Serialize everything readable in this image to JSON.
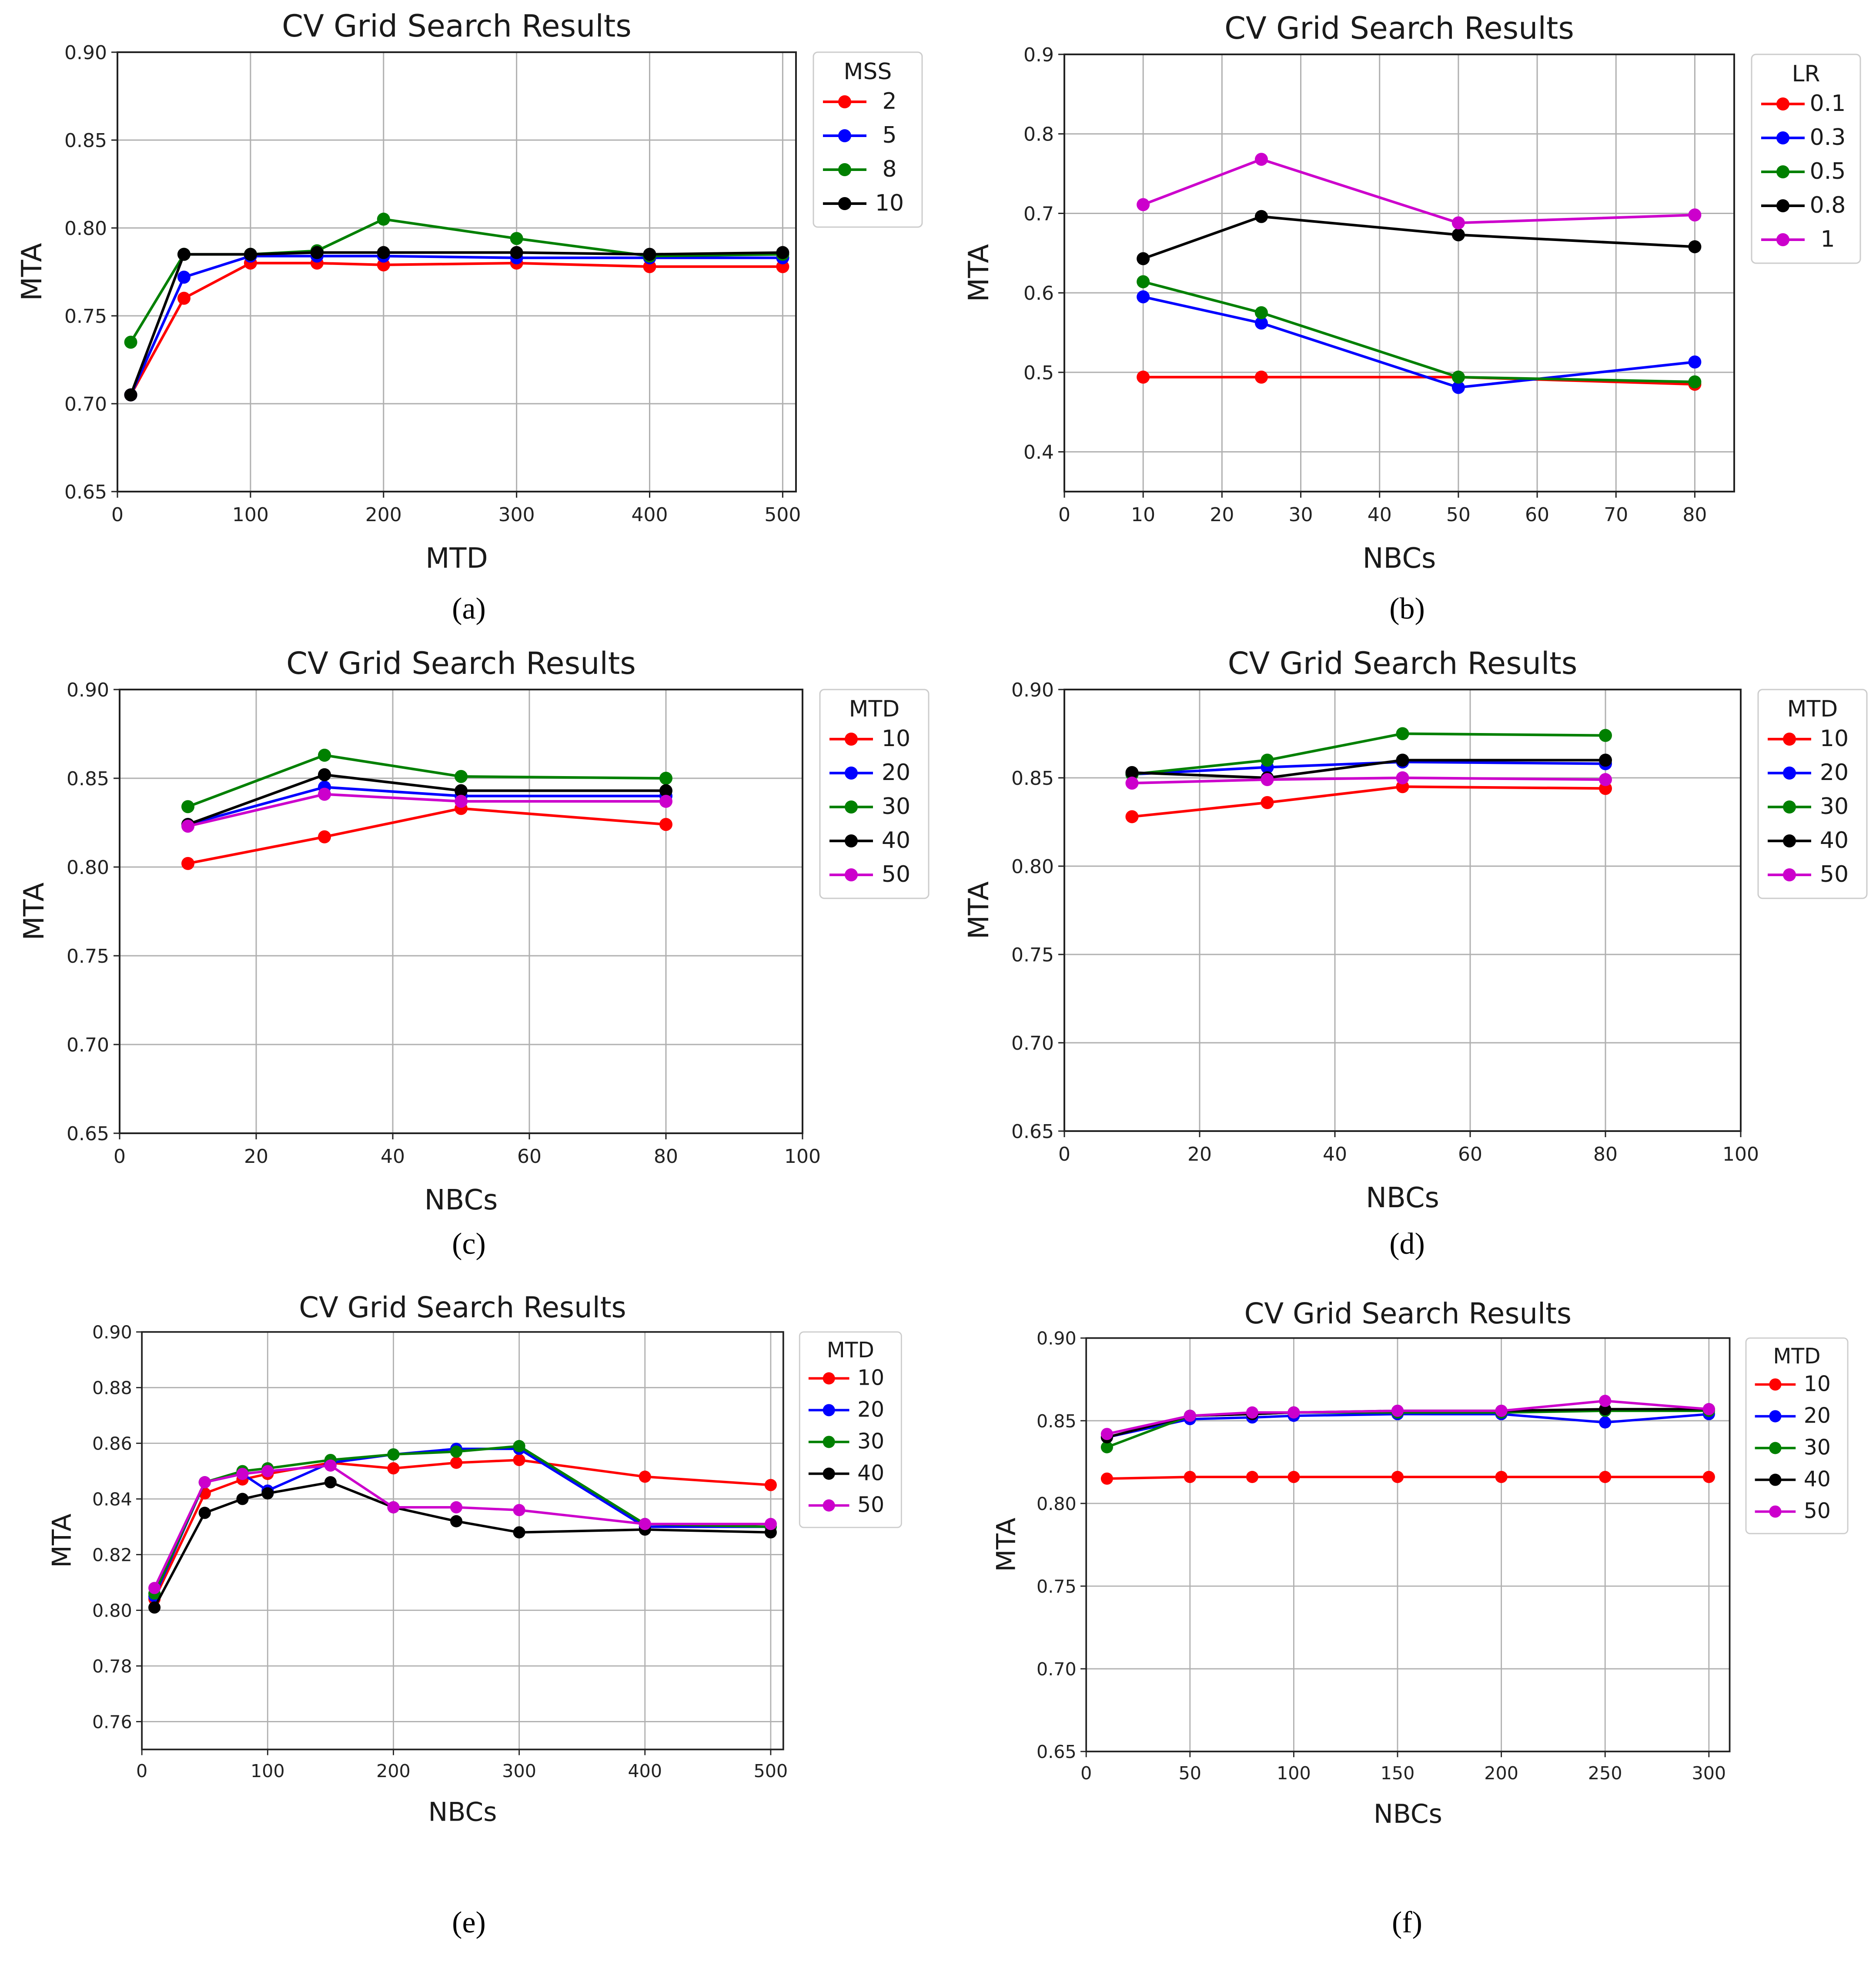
{
  "figure": {
    "captions": [
      "(a)",
      "(b)",
      "(c)",
      "(d)",
      "(e)",
      "(f)"
    ]
  },
  "chart_data": [
    {
      "type": "line",
      "panel": "a",
      "title": "CV Grid Search Results",
      "xlabel": "MTD",
      "ylabel": "MTA",
      "xlim": [
        0,
        510
      ],
      "ylim": [
        0.65,
        0.9
      ],
      "xticks": [
        0,
        100,
        200,
        300,
        400,
        500
      ],
      "yticks": [
        0.65,
        0.7,
        0.75,
        0.8,
        0.85,
        0.9
      ],
      "xtick_labels": [
        "0",
        "100",
        "200",
        "300",
        "400",
        "500"
      ],
      "ytick_labels": [
        "0.65",
        "0.70",
        "0.75",
        "0.80",
        "0.85",
        "0.90"
      ],
      "legend_title": "MSS",
      "legend_position": "outside-right-top",
      "grid": true,
      "x": [
        10,
        50,
        100,
        150,
        200,
        300,
        400,
        500
      ],
      "series": [
        {
          "name": "2",
          "color": "#ff0000",
          "values": [
            0.705,
            0.76,
            0.78,
            0.78,
            0.779,
            0.78,
            0.778,
            0.778
          ]
        },
        {
          "name": "5",
          "color": "#0000ff",
          "values": [
            0.705,
            0.772,
            0.784,
            0.784,
            0.784,
            0.783,
            0.783,
            0.783
          ]
        },
        {
          "name": "8",
          "color": "#008000",
          "values": [
            0.735,
            0.785,
            0.785,
            0.787,
            0.805,
            0.794,
            0.784,
            0.785
          ]
        },
        {
          "name": "10",
          "color": "#000000",
          "values": [
            0.705,
            0.785,
            0.785,
            0.786,
            0.786,
            0.786,
            0.785,
            0.786
          ]
        }
      ]
    },
    {
      "type": "line",
      "panel": "b",
      "title": "CV Grid Search Results",
      "xlabel": "NBCs",
      "ylabel": "MTA",
      "xlim": [
        0,
        85
      ],
      "ylim": [
        0.35,
        0.9
      ],
      "xticks": [
        0,
        10,
        20,
        30,
        40,
        50,
        60,
        70,
        80
      ],
      "yticks": [
        0.4,
        0.5,
        0.6,
        0.7,
        0.8,
        0.9
      ],
      "xtick_labels": [
        "0",
        "10",
        "20",
        "30",
        "40",
        "50",
        "60",
        "70",
        "80"
      ],
      "ytick_labels": [
        "0.4",
        "0.5",
        "0.6",
        "0.7",
        "0.8",
        "0.9"
      ],
      "legend_title": "LR",
      "legend_position": "outside-right-top",
      "grid": true,
      "x": [
        10,
        25,
        50,
        80
      ],
      "series": [
        {
          "name": "0.1",
          "color": "#ff0000",
          "values": [
            0.494,
            0.494,
            0.494,
            0.485
          ]
        },
        {
          "name": "0.3",
          "color": "#0000ff",
          "values": [
            0.595,
            0.562,
            0.481,
            0.513
          ]
        },
        {
          "name": "0.5",
          "color": "#008000",
          "values": [
            0.614,
            0.575,
            0.494,
            0.488
          ]
        },
        {
          "name": "0.8",
          "color": "#000000",
          "values": [
            0.643,
            0.696,
            0.673,
            0.658
          ]
        },
        {
          "name": "1",
          "color": "#cc00cc",
          "values": [
            0.711,
            0.768,
            0.688,
            0.698
          ]
        }
      ]
    },
    {
      "type": "line",
      "panel": "c",
      "title": "CV Grid Search Results",
      "xlabel": "NBCs",
      "ylabel": "MTA",
      "xlim": [
        0,
        100
      ],
      "ylim": [
        0.65,
        0.9
      ],
      "xticks": [
        0,
        20,
        40,
        60,
        80,
        100
      ],
      "yticks": [
        0.65,
        0.7,
        0.75,
        0.8,
        0.85,
        0.9
      ],
      "xtick_labels": [
        "0",
        "20",
        "40",
        "60",
        "80",
        "100"
      ],
      "ytick_labels": [
        "0.65",
        "0.70",
        "0.75",
        "0.80",
        "0.85",
        "0.90"
      ],
      "legend_title": "MTD",
      "legend_position": "outside-right-top",
      "grid": true,
      "x": [
        10,
        30,
        50,
        80
      ],
      "series": [
        {
          "name": "10",
          "color": "#ff0000",
          "values": [
            0.802,
            0.817,
            0.833,
            0.824
          ]
        },
        {
          "name": "20",
          "color": "#0000ff",
          "values": [
            0.824,
            0.845,
            0.84,
            0.84
          ]
        },
        {
          "name": "30",
          "color": "#008000",
          "values": [
            0.834,
            0.863,
            0.851,
            0.85
          ]
        },
        {
          "name": "40",
          "color": "#000000",
          "values": [
            0.824,
            0.852,
            0.843,
            0.843
          ]
        },
        {
          "name": "50",
          "color": "#cc00cc",
          "values": [
            0.823,
            0.841,
            0.837,
            0.837
          ]
        }
      ]
    },
    {
      "type": "line",
      "panel": "d",
      "title": "CV Grid Search Results",
      "xlabel": "NBCs",
      "ylabel": "MTA",
      "xlim": [
        0,
        100
      ],
      "ylim": [
        0.65,
        0.9
      ],
      "xticks": [
        0,
        20,
        40,
        60,
        80,
        100
      ],
      "yticks": [
        0.65,
        0.7,
        0.75,
        0.8,
        0.85,
        0.9
      ],
      "xtick_labels": [
        "0",
        "20",
        "40",
        "60",
        "80",
        "100"
      ],
      "ytick_labels": [
        "0.65",
        "0.70",
        "0.75",
        "0.80",
        "0.85",
        "0.90"
      ],
      "legend_title": "MTD",
      "legend_position": "outside-right-top",
      "grid": true,
      "x": [
        10,
        30,
        50,
        80
      ],
      "series": [
        {
          "name": "10",
          "color": "#ff0000",
          "values": [
            0.828,
            0.836,
            0.845,
            0.844
          ]
        },
        {
          "name": "20",
          "color": "#0000ff",
          "values": [
            0.852,
            0.856,
            0.859,
            0.858
          ]
        },
        {
          "name": "30",
          "color": "#008000",
          "values": [
            0.852,
            0.86,
            0.875,
            0.874
          ]
        },
        {
          "name": "40",
          "color": "#000000",
          "values": [
            0.853,
            0.85,
            0.86,
            0.86
          ]
        },
        {
          "name": "50",
          "color": "#cc00cc",
          "values": [
            0.847,
            0.849,
            0.85,
            0.849
          ]
        }
      ]
    },
    {
      "type": "line",
      "panel": "e",
      "title": "CV Grid Search Results",
      "xlabel": "NBCs",
      "ylabel": "MTA",
      "xlim": [
        0,
        510
      ],
      "ylim": [
        0.75,
        0.9
      ],
      "xticks": [
        0,
        100,
        200,
        300,
        400,
        500
      ],
      "yticks": [
        0.76,
        0.78,
        0.8,
        0.82,
        0.84,
        0.86,
        0.88,
        0.9
      ],
      "xtick_labels": [
        "0",
        "100",
        "200",
        "300",
        "400",
        "500"
      ],
      "ytick_labels": [
        "0.76",
        "0.78",
        "0.80",
        "0.82",
        "0.84",
        "0.86",
        "0.88",
        "0.90"
      ],
      "legend_title": "MTD",
      "legend_position": "outside-right-top",
      "grid": true,
      "x": [
        10,
        50,
        80,
        100,
        150,
        200,
        250,
        300,
        400,
        500
      ],
      "series": [
        {
          "name": "10",
          "color": "#ff0000",
          "values": [
            0.804,
            0.842,
            0.847,
            0.849,
            0.853,
            0.851,
            0.853,
            0.854,
            0.848,
            0.845
          ]
        },
        {
          "name": "20",
          "color": "#0000ff",
          "values": [
            0.805,
            0.846,
            0.849,
            0.843,
            0.853,
            0.856,
            0.858,
            0.858,
            0.83,
            0.83
          ]
        },
        {
          "name": "30",
          "color": "#008000",
          "values": [
            0.806,
            0.846,
            0.85,
            0.851,
            0.854,
            0.856,
            0.857,
            0.859,
            0.831,
            0.83
          ]
        },
        {
          "name": "40",
          "color": "#000000",
          "values": [
            0.801,
            0.835,
            0.84,
            0.842,
            0.846,
            0.837,
            0.832,
            0.828,
            0.829,
            0.828
          ]
        },
        {
          "name": "50",
          "color": "#cc00cc",
          "values": [
            0.808,
            0.846,
            0.849,
            0.85,
            0.852,
            0.837,
            0.837,
            0.836,
            0.831,
            0.831
          ]
        }
      ]
    },
    {
      "type": "line",
      "panel": "f",
      "title": "CV Grid Search Results",
      "xlabel": "NBCs",
      "ylabel": "MTA",
      "xlim": [
        0,
        310
      ],
      "ylim": [
        0.65,
        0.9
      ],
      "xticks": [
        0,
        50,
        100,
        150,
        200,
        250,
        300
      ],
      "yticks": [
        0.65,
        0.7,
        0.75,
        0.8,
        0.85,
        0.9
      ],
      "xtick_labels": [
        "0",
        "50",
        "100",
        "150",
        "200",
        "250",
        "300"
      ],
      "ytick_labels": [
        "0.65",
        "0.70",
        "0.75",
        "0.80",
        "0.85",
        "0.90"
      ],
      "legend_title": "MTD",
      "legend_position": "outside-right-top",
      "grid": true,
      "x": [
        10,
        50,
        80,
        100,
        150,
        200,
        250,
        300
      ],
      "series": [
        {
          "name": "10",
          "color": "#ff0000",
          "values": [
            0.815,
            0.816,
            0.816,
            0.816,
            0.816,
            0.816,
            0.816,
            0.816
          ]
        },
        {
          "name": "20",
          "color": "#0000ff",
          "values": [
            0.84,
            0.851,
            0.852,
            0.853,
            0.854,
            0.854,
            0.849,
            0.854
          ]
        },
        {
          "name": "30",
          "color": "#008000",
          "values": [
            0.834,
            0.853,
            0.854,
            0.855,
            0.855,
            0.855,
            0.856,
            0.856
          ]
        },
        {
          "name": "40",
          "color": "#000000",
          "values": [
            0.84,
            0.853,
            0.854,
            0.855,
            0.856,
            0.856,
            0.857,
            0.857
          ]
        },
        {
          "name": "50",
          "color": "#cc00cc",
          "values": [
            0.842,
            0.853,
            0.855,
            0.855,
            0.856,
            0.856,
            0.862,
            0.857
          ]
        }
      ]
    }
  ]
}
